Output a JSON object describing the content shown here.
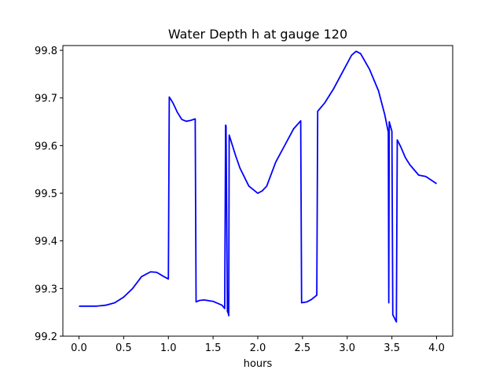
{
  "chart_data": {
    "type": "line",
    "title": "Water Depth h at gauge 120",
    "xlabel": "hours",
    "ylabel": "",
    "xlim": [
      -0.18,
      4.18
    ],
    "ylim": [
      99.2,
      99.81
    ],
    "xticks": [
      0.0,
      0.5,
      1.0,
      1.5,
      2.0,
      2.5,
      3.0,
      3.5,
      4.0
    ],
    "xtick_labels": [
      "0.0",
      "0.5",
      "1.0",
      "1.5",
      "2.0",
      "2.5",
      "3.0",
      "3.5",
      "4.0"
    ],
    "yticks": [
      99.2,
      99.3,
      99.4,
      99.5,
      99.6,
      99.7,
      99.8
    ],
    "ytick_labels": [
      "99.2",
      "99.3",
      "99.4",
      "99.5",
      "99.6",
      "99.7",
      "99.8"
    ],
    "grid": false,
    "series": [
      {
        "color": "#0000ff",
        "x": [
          0.0,
          0.1,
          0.2,
          0.3,
          0.4,
          0.5,
          0.6,
          0.7,
          0.8,
          0.87,
          0.95,
          1.0,
          1.01,
          1.05,
          1.1,
          1.15,
          1.2,
          1.25,
          1.3,
          1.31,
          1.35,
          1.4,
          1.5,
          1.6,
          1.63,
          1.64,
          1.645,
          1.66,
          1.67,
          1.675,
          1.68,
          1.75,
          1.8,
          1.9,
          2.0,
          2.05,
          2.1,
          2.2,
          2.3,
          2.4,
          2.48,
          2.49,
          2.55,
          2.6,
          2.66,
          2.67,
          2.75,
          2.85,
          2.95,
          3.05,
          3.1,
          3.15,
          3.25,
          3.35,
          3.42,
          3.46,
          3.465,
          3.47,
          3.5,
          3.51,
          3.55,
          3.56,
          3.6,
          3.65,
          3.7,
          3.8,
          3.88,
          4.0
        ],
        "y": [
          99.263,
          99.263,
          99.263,
          99.265,
          99.27,
          99.282,
          99.3,
          99.325,
          99.335,
          99.334,
          99.325,
          99.32,
          99.702,
          99.69,
          99.67,
          99.655,
          99.651,
          99.653,
          99.656,
          99.272,
          99.275,
          99.276,
          99.273,
          99.265,
          99.258,
          99.643,
          99.641,
          99.252,
          99.248,
          99.243,
          99.622,
          99.58,
          99.553,
          99.515,
          99.5,
          99.505,
          99.515,
          99.565,
          99.6,
          99.635,
          99.652,
          99.27,
          99.272,
          99.277,
          99.286,
          99.672,
          99.69,
          99.72,
          99.755,
          99.79,
          99.798,
          99.793,
          99.76,
          99.715,
          99.665,
          99.628,
          99.27,
          99.65,
          99.63,
          99.245,
          99.23,
          99.612,
          99.597,
          99.575,
          99.56,
          99.538,
          99.535,
          99.52
        ]
      }
    ]
  }
}
